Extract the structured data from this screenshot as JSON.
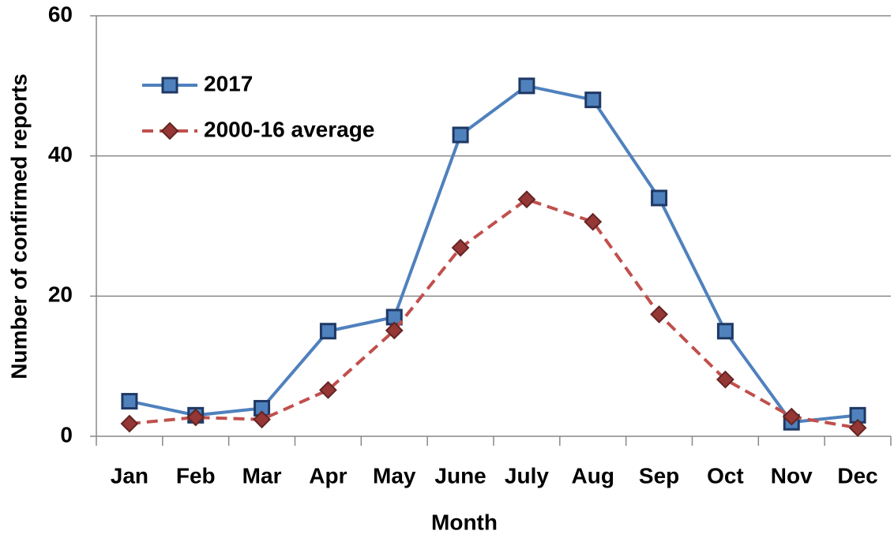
{
  "chart_data": {
    "type": "line",
    "x_label": "Month",
    "y_label": "Number of confirmed reports",
    "categories": [
      "Jan",
      "Feb",
      "Mar",
      "Apr",
      "May",
      "June",
      "July",
      "Aug",
      "Sep",
      "Oct",
      "Nov",
      "Dec"
    ],
    "series": [
      {
        "name": "2017",
        "color": "#4f81bd",
        "marker": "square",
        "dashed": false,
        "values": [
          5,
          3,
          4,
          15,
          17,
          43,
          50,
          48,
          34,
          15,
          2,
          3
        ]
      },
      {
        "name": "2000-16 average",
        "color": "#c0504d",
        "marker": "diamond",
        "dashed": true,
        "values": [
          1.8,
          2.7,
          2.4,
          6.6,
          15.1,
          26.9,
          33.8,
          30.6,
          17.4,
          8.1,
          2.8,
          1.2
        ]
      }
    ],
    "ylim": [
      0,
      60
    ],
    "yticks": [
      0,
      20,
      40,
      60
    ],
    "grid": true,
    "legend": "top-left"
  }
}
